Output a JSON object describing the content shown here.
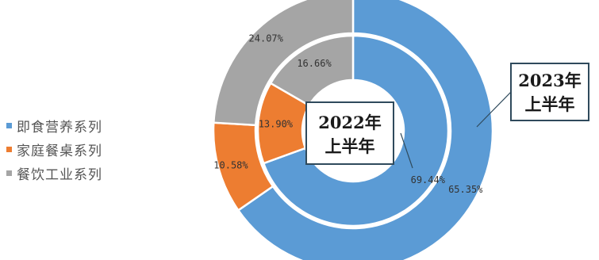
{
  "chart_data": {
    "type": "pie",
    "variant": "nested-donut",
    "categories": [
      "即食营养系列",
      "家庭餐桌系列",
      "餐饮工业系列"
    ],
    "colors": [
      "#5b9bd5",
      "#ed7d31",
      "#a5a5a5"
    ],
    "series": [
      {
        "name": "2022年上半年",
        "ring": "inner",
        "values": [
          69.44,
          13.9,
          16.66
        ],
        "labels": [
          "69.44%",
          "13.90%",
          "16.66%"
        ]
      },
      {
        "name": "2023年上半年",
        "ring": "outer",
        "values": [
          65.35,
          10.58,
          24.07
        ],
        "labels": [
          "65.35%",
          "10.58%",
          "24.07%"
        ]
      }
    ],
    "legend_position": "left"
  },
  "legend": [
    {
      "label": "即食营养系列",
      "color": "#5b9bd5"
    },
    {
      "label": "家庭餐桌系列",
      "color": "#ed7d31"
    },
    {
      "label": "餐饮工业系列",
      "color": "#a5a5a5"
    }
  ],
  "callouts": {
    "inner": {
      "line1": "2022年",
      "line2": "上半年"
    },
    "outer": {
      "line1": "2023年",
      "line2": "上半年"
    }
  }
}
